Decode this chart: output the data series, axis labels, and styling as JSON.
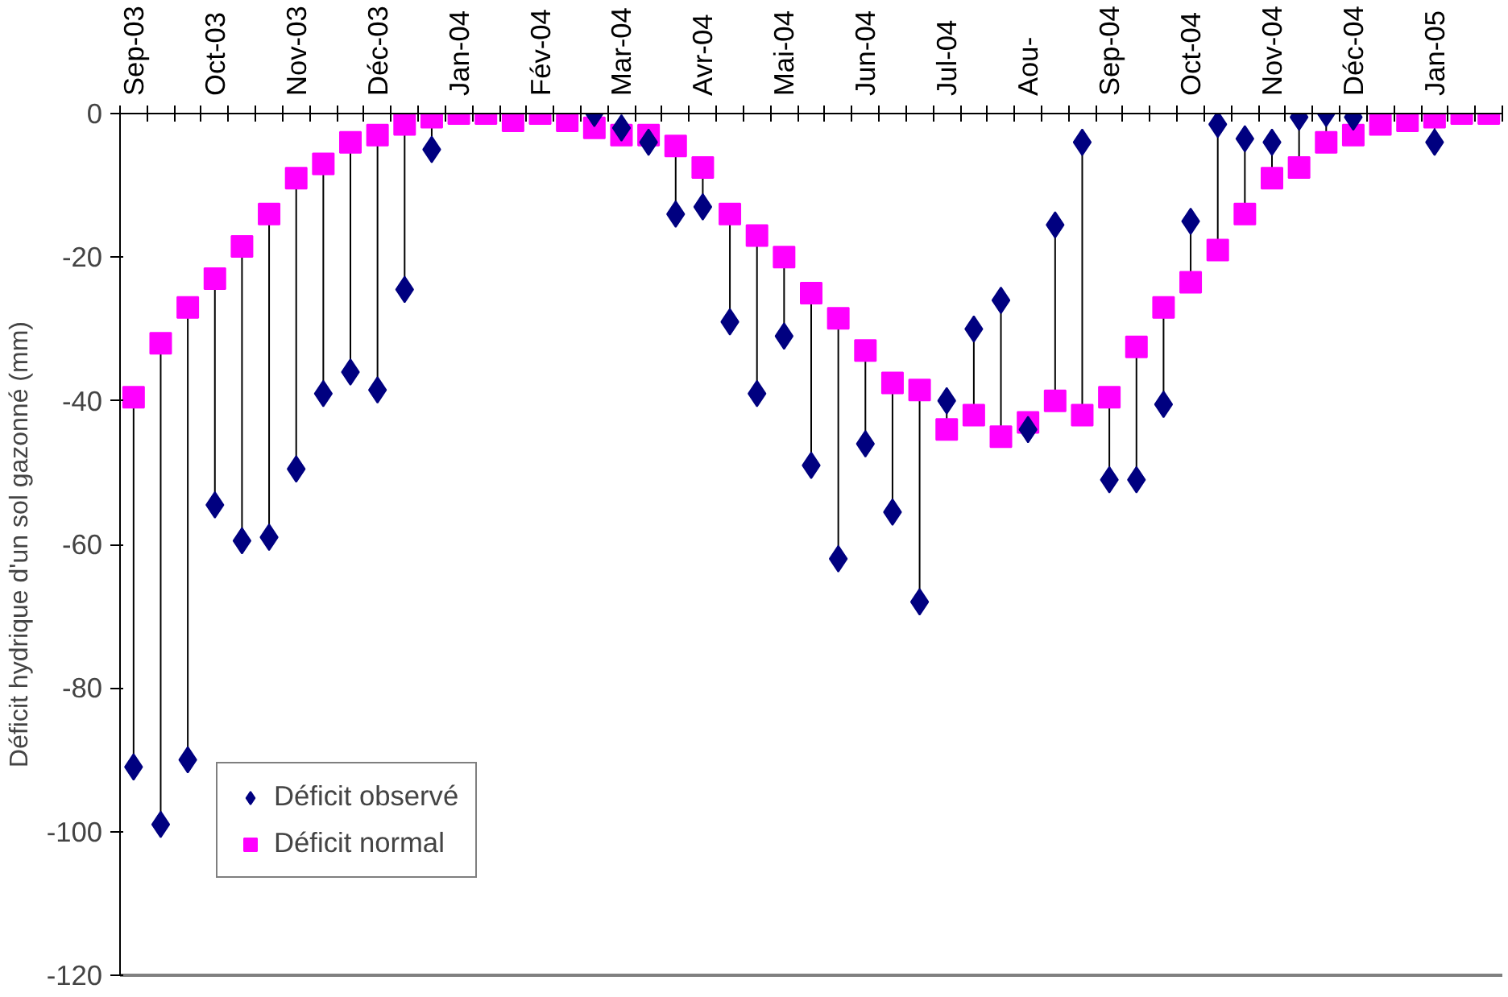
{
  "chart_data": {
    "type": "scatter",
    "ylabel": "Déficit hydrique d'un sol gazonné (mm)",
    "categories": [
      "Sep-03",
      null,
      null,
      "Oct-03",
      null,
      null,
      "Nov-03",
      null,
      null,
      "Déc-03",
      null,
      null,
      "Jan-04",
      null,
      null,
      "Fév-04",
      null,
      null,
      "Mar-04",
      null,
      null,
      "Avr-04",
      null,
      null,
      "Mai-04",
      null,
      null,
      "Jun-04",
      null,
      null,
      "Jul-04",
      null,
      null,
      "Aou-",
      null,
      null,
      "Sep-04",
      null,
      null,
      "Oct-04",
      null,
      null,
      "Nov-04",
      null,
      null,
      "Déc-04",
      null,
      null,
      "Jan-05",
      null,
      null
    ],
    "series": [
      {
        "name": "Déficit observé",
        "color": "#000080",
        "marker": "diamond",
        "values": [
          -91,
          -99,
          -90,
          -54.5,
          -59.5,
          -59,
          -49.5,
          -39,
          -36,
          -38.5,
          -24.5,
          -5,
          null,
          null,
          null,
          null,
          null,
          0,
          -2,
          -4,
          -14,
          -13,
          -29,
          -39,
          -31,
          -49,
          -62,
          -46,
          -55.5,
          -68,
          -40,
          -30,
          -26,
          -44,
          -15.5,
          -4,
          -51,
          -51,
          -40.5,
          -15,
          -1.5,
          -3.5,
          -4,
          -0.5,
          0,
          -0.5,
          null,
          null,
          -4,
          null,
          null
        ]
      },
      {
        "name": "Déficit normal",
        "color": "#ff00ff",
        "marker": "square",
        "values": [
          -39.5,
          -32,
          -27,
          -23,
          -18.5,
          -14,
          -9,
          -7,
          -4,
          -3,
          -1.5,
          -0.5,
          0,
          0,
          -1,
          0,
          -1,
          -2,
          -3,
          -3,
          -4.5,
          -7.5,
          -14,
          -17,
          -20,
          -25,
          -28.5,
          -33,
          -37.5,
          -38.5,
          -44,
          -42,
          -45,
          -43,
          -40,
          -42,
          -39.5,
          -32.5,
          -27,
          -23.5,
          -19,
          -14,
          -9,
          -7.5,
          -4,
          -3,
          -1.5,
          -1,
          -0.5,
          0,
          0
        ]
      }
    ],
    "ylim": [
      -120,
      0
    ],
    "yticks": [
      0,
      -20,
      -40,
      -60,
      -80,
      -100,
      -120
    ],
    "legend": "bottom left"
  }
}
